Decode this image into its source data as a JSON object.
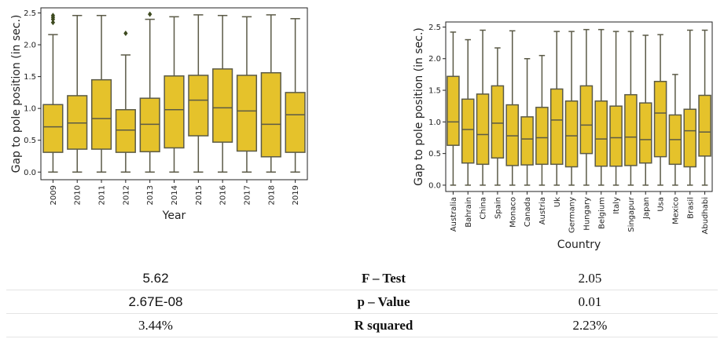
{
  "colors": {
    "box_fill": "#e5c22b",
    "box_line": "#5b5a47",
    "flier": "#3d4a1f",
    "axis": "#222222",
    "background": "#ffffff"
  },
  "chart_data": [
    {
      "type": "box",
      "xlabel": "Year",
      "ylabel": "Gap to pole position (in sec.)",
      "ylim": [
        -0.12,
        2.58
      ],
      "yticks": [
        "0.0",
        "0.5",
        "1.0",
        "1.5",
        "2.0",
        "2.5"
      ],
      "grid": false,
      "categories": [
        "2009",
        "2010",
        "2011",
        "2012",
        "2013",
        "2014",
        "2015",
        "2016",
        "2017",
        "2018",
        "2019"
      ],
      "boxes": [
        {
          "whislo": 0.0,
          "q1": 0.31,
          "med": 0.71,
          "q3": 1.06,
          "whishi": 2.16,
          "fliers": [
            2.35,
            2.4,
            2.43,
            2.46
          ]
        },
        {
          "whislo": 0.0,
          "q1": 0.36,
          "med": 0.77,
          "q3": 1.2,
          "whishi": 2.46,
          "fliers": []
        },
        {
          "whislo": 0.0,
          "q1": 0.36,
          "med": 0.84,
          "q3": 1.45,
          "whishi": 2.46,
          "fliers": []
        },
        {
          "whislo": 0.0,
          "q1": 0.31,
          "med": 0.66,
          "q3": 0.98,
          "whishi": 1.84,
          "fliers": [
            2.18
          ]
        },
        {
          "whislo": 0.0,
          "q1": 0.32,
          "med": 0.75,
          "q3": 1.16,
          "whishi": 2.4,
          "fliers": [
            2.48
          ]
        },
        {
          "whislo": 0.0,
          "q1": 0.38,
          "med": 0.98,
          "q3": 1.51,
          "whishi": 2.44,
          "fliers": []
        },
        {
          "whislo": 0.0,
          "q1": 0.57,
          "med": 1.13,
          "q3": 1.52,
          "whishi": 2.47,
          "fliers": []
        },
        {
          "whislo": 0.0,
          "q1": 0.47,
          "med": 1.01,
          "q3": 1.62,
          "whishi": 2.46,
          "fliers": []
        },
        {
          "whislo": 0.0,
          "q1": 0.33,
          "med": 0.96,
          "q3": 1.52,
          "whishi": 2.44,
          "fliers": []
        },
        {
          "whislo": 0.0,
          "q1": 0.24,
          "med": 0.75,
          "q3": 1.56,
          "whishi": 2.47,
          "fliers": []
        },
        {
          "whislo": 0.0,
          "q1": 0.31,
          "med": 0.9,
          "q3": 1.25,
          "whishi": 2.41,
          "fliers": []
        }
      ]
    },
    {
      "type": "box",
      "xlabel": "Country",
      "ylabel": "Gap to pole position (in sec.)",
      "ylim": [
        -0.1,
        2.58
      ],
      "yticks": [
        "0.0",
        "0.5",
        "1.0",
        "1.5",
        "2.0",
        "2.5"
      ],
      "grid": false,
      "categories": [
        "Australia",
        "Bahrain",
        "China",
        "Spain",
        "Monaco",
        "Canada",
        "Austria",
        "Uk",
        "Germany",
        "Hungary",
        "Belgium",
        "Italy",
        "Singapur",
        "Japan",
        "Usa",
        "Mexico",
        "Brasil",
        "Abudhabi"
      ],
      "boxes": [
        {
          "whislo": 0.0,
          "q1": 0.63,
          "med": 1.0,
          "q3": 1.72,
          "whishi": 2.42,
          "fliers": []
        },
        {
          "whislo": 0.0,
          "q1": 0.35,
          "med": 0.88,
          "q3": 1.36,
          "whishi": 2.3,
          "fliers": []
        },
        {
          "whislo": 0.0,
          "q1": 0.33,
          "med": 0.8,
          "q3": 1.44,
          "whishi": 2.45,
          "fliers": []
        },
        {
          "whislo": 0.0,
          "q1": 0.43,
          "med": 0.98,
          "q3": 1.57,
          "whishi": 2.17,
          "fliers": []
        },
        {
          "whislo": 0.0,
          "q1": 0.31,
          "med": 0.78,
          "q3": 1.27,
          "whishi": 2.44,
          "fliers": []
        },
        {
          "whislo": 0.0,
          "q1": 0.32,
          "med": 0.73,
          "q3": 1.08,
          "whishi": 2.0,
          "fliers": []
        },
        {
          "whislo": 0.0,
          "q1": 0.33,
          "med": 0.75,
          "q3": 1.23,
          "whishi": 2.05,
          "fliers": []
        },
        {
          "whislo": 0.0,
          "q1": 0.33,
          "med": 1.03,
          "q3": 1.52,
          "whishi": 2.43,
          "fliers": []
        },
        {
          "whislo": 0.0,
          "q1": 0.29,
          "med": 0.78,
          "q3": 1.33,
          "whishi": 2.43,
          "fliers": []
        },
        {
          "whislo": 0.0,
          "q1": 0.5,
          "med": 0.95,
          "q3": 1.57,
          "whishi": 2.46,
          "fliers": []
        },
        {
          "whislo": 0.0,
          "q1": 0.3,
          "med": 0.73,
          "q3": 1.33,
          "whishi": 2.46,
          "fliers": []
        },
        {
          "whislo": 0.0,
          "q1": 0.3,
          "med": 0.75,
          "q3": 1.25,
          "whishi": 2.43,
          "fliers": []
        },
        {
          "whislo": 0.0,
          "q1": 0.31,
          "med": 0.76,
          "q3": 1.43,
          "whishi": 2.43,
          "fliers": []
        },
        {
          "whislo": 0.0,
          "q1": 0.35,
          "med": 0.72,
          "q3": 1.3,
          "whishi": 2.37,
          "fliers": []
        },
        {
          "whislo": 0.0,
          "q1": 0.45,
          "med": 1.14,
          "q3": 1.64,
          "whishi": 2.38,
          "fliers": []
        },
        {
          "whislo": 0.0,
          "q1": 0.33,
          "med": 0.72,
          "q3": 1.11,
          "whishi": 1.75,
          "fliers": []
        },
        {
          "whislo": 0.0,
          "q1": 0.29,
          "med": 0.86,
          "q3": 1.2,
          "whishi": 2.45,
          "fliers": []
        },
        {
          "whislo": 0.0,
          "q1": 0.46,
          "med": 0.84,
          "q3": 1.42,
          "whishi": 2.45,
          "fliers": []
        }
      ]
    }
  ],
  "stats_table": {
    "rows": [
      {
        "left": "5.62",
        "label": "F – Test",
        "right": "2.05"
      },
      {
        "left": "2.67E-08",
        "label": "p – Value",
        "right": "0.01"
      },
      {
        "left": "3.44%",
        "label": "R squared",
        "right": "2.23%"
      }
    ]
  }
}
